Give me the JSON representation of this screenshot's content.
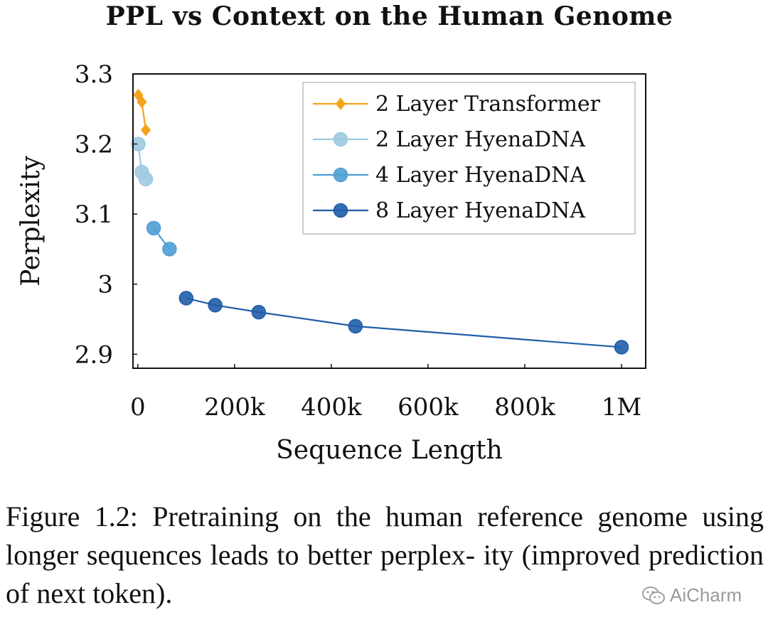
{
  "chart_data": {
    "type": "line",
    "title": "PPL vs Context on the Human Genome",
    "xlabel": "Sequence Length",
    "ylabel": "Perplexity",
    "xlim": [
      -10000,
      1050000
    ],
    "ylim": [
      2.88,
      3.3
    ],
    "xticks": [
      0,
      200000,
      400000,
      600000,
      800000,
      1000000
    ],
    "xtick_labels": [
      "0",
      "200k",
      "400k",
      "600k",
      "800k",
      "1M"
    ],
    "yticks": [
      2.9,
      3.0,
      3.1,
      3.2,
      3.3
    ],
    "ytick_labels": [
      "2.9",
      "3",
      "3.1",
      "3.2",
      "3.3"
    ],
    "grid": false,
    "legend_position": "top-right",
    "series": [
      {
        "name": "2 Layer Transformer",
        "color": "#f5a31a",
        "marker": "diamond",
        "x": [
          1024,
          8192,
          16384
        ],
        "y": [
          3.27,
          3.26,
          3.22
        ]
      },
      {
        "name": "2 Layer HyenaDNA",
        "color": "#9ecae1",
        "marker": "circle",
        "x": [
          1024,
          8192,
          16384
        ],
        "y": [
          3.2,
          3.16,
          3.15
        ]
      },
      {
        "name": "4 Layer HyenaDNA",
        "color": "#4f9fd4",
        "marker": "circle",
        "x": [
          32768,
          65536
        ],
        "y": [
          3.08,
          3.05
        ]
      },
      {
        "name": "8 Layer HyenaDNA",
        "color": "#1f5ea8",
        "marker": "circle",
        "x": [
          100000,
          160000,
          250000,
          450000,
          1000000
        ],
        "y": [
          2.98,
          2.97,
          2.96,
          2.94,
          2.91
        ]
      }
    ]
  },
  "caption": {
    "line1": "Figure 1.2: Pretraining on the human reference",
    "line2": "genome using longer sequences leads to better perplex-",
    "line3": "ity (improved prediction of next token)."
  },
  "watermark": {
    "text": "AiCharm",
    "icon": "wechat-icon"
  }
}
